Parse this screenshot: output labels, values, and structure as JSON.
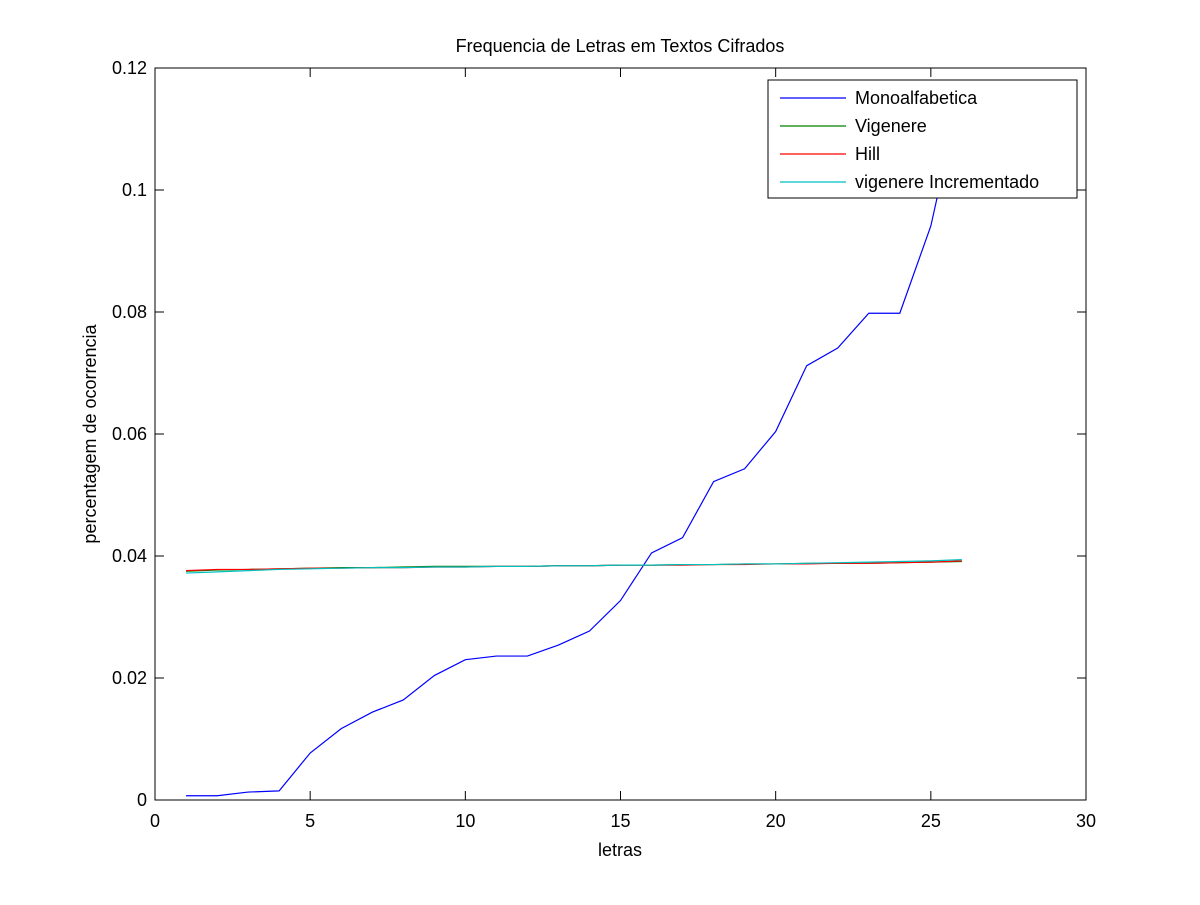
{
  "chart_data": {
    "type": "line",
    "title": "Frequencia de Letras em Textos Cifrados",
    "xlabel": "letras",
    "ylabel": "percentagem de ocorrencia",
    "xlim": [
      0,
      30
    ],
    "ylim": [
      0,
      0.12
    ],
    "xticks": [
      0,
      5,
      10,
      15,
      20,
      25,
      30
    ],
    "yticks": [
      0,
      0.02,
      0.04,
      0.06,
      0.08,
      0.1,
      0.12
    ],
    "xtick_labels": [
      "0",
      "5",
      "10",
      "15",
      "20",
      "25",
      "30"
    ],
    "ytick_labels": [
      "0",
      "0.02",
      "0.04",
      "0.06",
      "0.08",
      "0.1",
      "0.12"
    ],
    "grid": false,
    "legend_position": "top-right",
    "x": [
      1,
      2,
      3,
      4,
      5,
      6,
      7,
      8,
      9,
      10,
      11,
      12,
      13,
      14,
      15,
      16,
      17,
      18,
      19,
      20,
      21,
      22,
      23,
      24,
      25,
      26
    ],
    "series": [
      {
        "name": "Monoalfabetica",
        "color": "#0000ff",
        "values": [
          0.0007,
          0.0007,
          0.0013,
          0.0015,
          0.0077,
          0.0117,
          0.0144,
          0.0164,
          0.0204,
          0.023,
          0.0236,
          0.0236,
          0.0254,
          0.0277,
          0.0327,
          0.0405,
          0.043,
          0.0522,
          0.0543,
          0.0604,
          0.0712,
          0.0741,
          0.0798,
          0.0798,
          0.0941,
          0.117
        ]
      },
      {
        "name": "Vigenere",
        "color": "#008000",
        "values": [
          0.0375,
          0.0377,
          0.0378,
          0.0379,
          0.038,
          0.0381,
          0.0381,
          0.0382,
          0.0383,
          0.0383,
          0.0383,
          0.0383,
          0.0384,
          0.0384,
          0.0385,
          0.0385,
          0.0386,
          0.0386,
          0.0387,
          0.0387,
          0.0388,
          0.0388,
          0.0388,
          0.0389,
          0.039,
          0.0391
        ]
      },
      {
        "name": "Hill",
        "color": "#ff0000",
        "values": [
          0.0376,
          0.0378,
          0.0378,
          0.0379,
          0.038,
          0.038,
          0.0381,
          0.0381,
          0.0382,
          0.0382,
          0.0383,
          0.0383,
          0.0384,
          0.0384,
          0.0385,
          0.0385,
          0.0385,
          0.0386,
          0.0386,
          0.0387,
          0.0387,
          0.0388,
          0.0388,
          0.0389,
          0.039,
          0.0392
        ]
      },
      {
        "name": "vigenere Incrementado",
        "color": "#00bfbf",
        "values": [
          0.0372,
          0.0374,
          0.0376,
          0.0378,
          0.0379,
          0.038,
          0.0381,
          0.0381,
          0.0382,
          0.0382,
          0.0383,
          0.0383,
          0.0384,
          0.0384,
          0.0385,
          0.0385,
          0.0386,
          0.0386,
          0.0387,
          0.0387,
          0.0388,
          0.0389,
          0.039,
          0.0391,
          0.0392,
          0.0394
        ]
      }
    ]
  }
}
